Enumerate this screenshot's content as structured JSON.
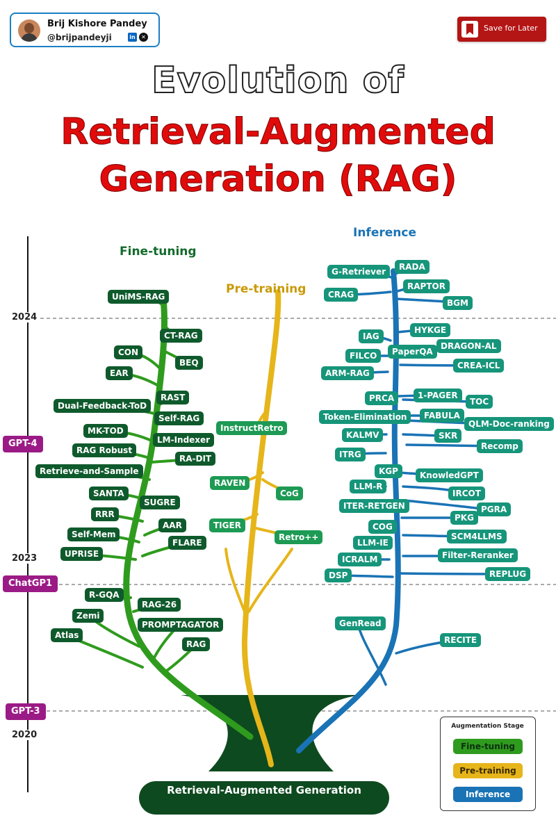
{
  "author": {
    "name": "Brij Kishore Pandey",
    "handle": "@brijpandeyji",
    "linkedin_icon": "linkedin-icon",
    "x_icon": "x-icon"
  },
  "save_button": {
    "label": "Save for Later",
    "icon": "bookmark-icon"
  },
  "title": {
    "line1": "Evolution of",
    "line2": "Retrieval-Augmented",
    "line3": "Generation (RAG)"
  },
  "stages": {
    "fine_tuning": "Fine-tuning",
    "pre_training": "Pre-training",
    "inference": "Inference"
  },
  "timeline": {
    "years": {
      "y2024": "2024",
      "y2023": "2023",
      "y2020": "2020"
    },
    "milestones": {
      "gpt4": "GPT-4",
      "chatgpt": "ChatGP1",
      "gpt3": "GPT-3"
    }
  },
  "base_label": "Retrieval-Augmented Generation",
  "fine_tuning_nodes": [
    "UniMS-RAG",
    "CT-RAG",
    "CON",
    "BEQ",
    "EAR",
    "RAST",
    "Dual-Feedback-ToD",
    "Self-RAG",
    "MK-TOD",
    "LM-Indexer",
    "RAG Robust",
    "RA-DIT",
    "Retrieve-and-Sample",
    "SANTA",
    "SUGRE",
    "RRR",
    "AAR",
    "Self-Mem",
    "FLARE",
    "UPRISE",
    "R-GQA",
    "RAG-26",
    "Zemi",
    "PROMPTAGATOR",
    "Atlas",
    "RAG"
  ],
  "pre_training_nodes": [
    "InstructRetro",
    "RAVEN",
    "CoG",
    "TIGER",
    "Retro++"
  ],
  "inference_nodes": [
    "G-Retriever",
    "RADA",
    "CRAG",
    "RAPTOR",
    "BGM",
    "HYKGE",
    "IAG",
    "PaperQA",
    "DRAGON-AL",
    "FILCO",
    "CREA-ICL",
    "ARM-RAG",
    "PRCA",
    "1-PAGER",
    "TOC",
    "Token-Elimination",
    "FABULA",
    "QLM-Doc-ranking",
    "KALMV",
    "SKR",
    "Recomp",
    "ITRG",
    "KGP",
    "KnowledGPT",
    "LLM-R",
    "IRCOT",
    "ITER-RETGEN",
    "PGRA",
    "COG",
    "PKG",
    "LLM-IE",
    "SCM4LLMS",
    "ICRALM",
    "Filter-Reranker",
    "DSP",
    "REPLUG",
    "GenRead",
    "RECITE"
  ],
  "legend": {
    "title": "Augmentation Stage",
    "items": [
      "Fine-tuning",
      "Pre-training",
      "Inference"
    ]
  },
  "colors": {
    "fine_tuning": "#2f9b1e",
    "pre_training": "#e6b51a",
    "inference": "#1a73b5",
    "milestone": "#9b1b86",
    "title_red": "#e10b0b",
    "trunk": "#0e4a1f"
  }
}
